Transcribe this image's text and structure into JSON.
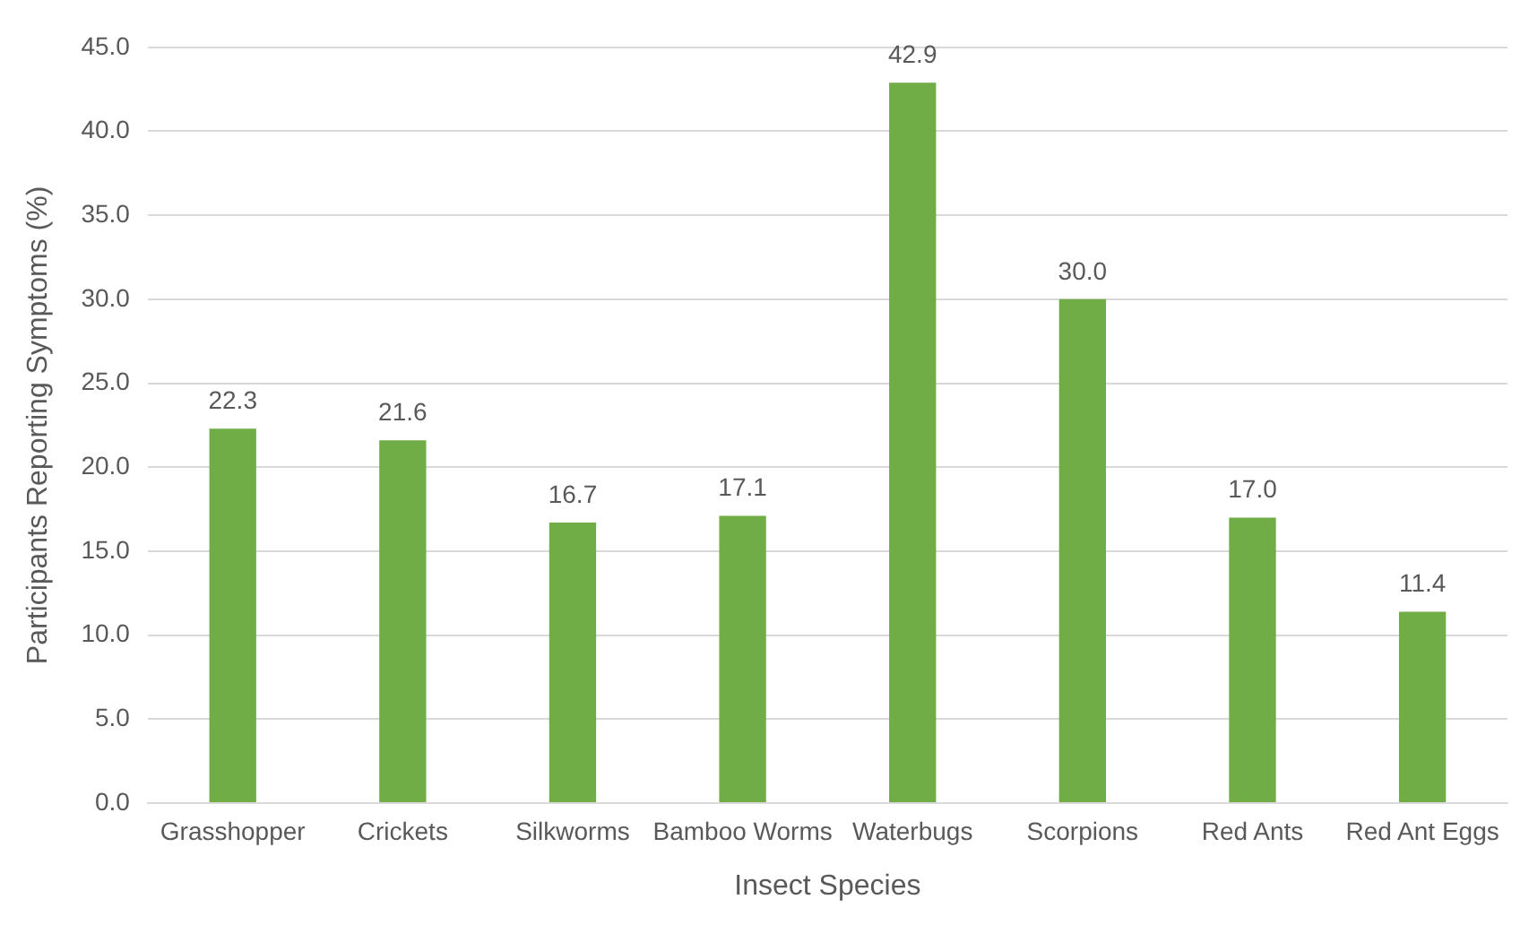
{
  "chart_data": {
    "type": "bar",
    "xlabel": "Insect Species",
    "ylabel": "Participants Reporting Symptoms (%)",
    "categories": [
      "Grasshopper",
      "Crickets",
      "Silkworms",
      "Bamboo Worms",
      "Waterbugs",
      "Scorpions",
      "Red Ants",
      "Red Ant Eggs"
    ],
    "values": [
      22.3,
      21.6,
      16.7,
      17.1,
      42.9,
      30.0,
      17.0,
      11.4
    ],
    "value_labels": [
      "22.3",
      "21.6",
      "16.7",
      "17.1",
      "42.9",
      "30.0",
      "17.0",
      "11.4"
    ],
    "color": "#70ad47",
    "ylim": [
      0,
      45
    ],
    "yticks": [
      {
        "value": 0,
        "label": "0.0"
      },
      {
        "value": 5,
        "label": "5.0"
      },
      {
        "value": 10,
        "label": "10.0"
      },
      {
        "value": 15,
        "label": "15.0"
      },
      {
        "value": 20,
        "label": "20.0"
      },
      {
        "value": 25,
        "label": "25.0"
      },
      {
        "value": 30,
        "label": "30.0"
      },
      {
        "value": 35,
        "label": "35.0"
      },
      {
        "value": 40,
        "label": "40.0"
      },
      {
        "value": 45,
        "label": "45.0"
      }
    ],
    "grid": "y",
    "legend": false
  }
}
